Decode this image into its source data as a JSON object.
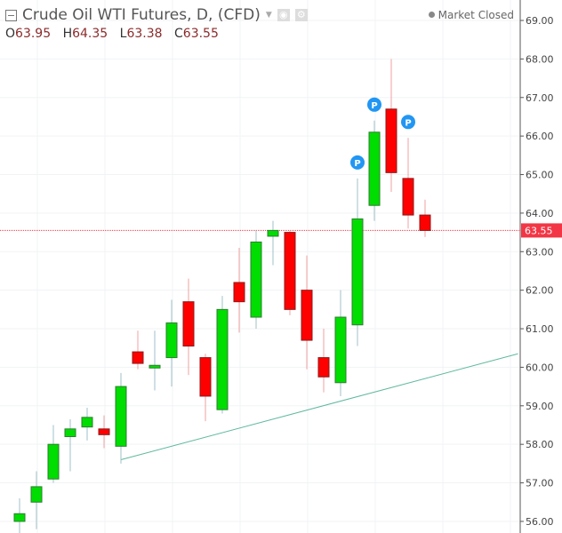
{
  "header": {
    "title": "Crude Oil WTI Futures, D, (CFD)",
    "status": "Market Closed",
    "ohlc": {
      "o_label": "O",
      "o": "63.95",
      "h_label": "H",
      "h": "64.35",
      "l_label": "L",
      "l": "63.38",
      "c_label": "C",
      "c": "63.55"
    }
  },
  "colors": {
    "up": "#00dd00",
    "down": "#ff0000",
    "wick_up": "#9fc0c8",
    "wick_down": "#f0a0a0",
    "trend": "#5fb8a0",
    "marker": "#2196f3",
    "last": "#f23645"
  },
  "chart_data": {
    "type": "candlestick",
    "title": "Crude Oil WTI Futures, D, (CFD)",
    "ylim": [
      55.85,
      69.45
    ],
    "yticks": [
      "69.00",
      "68.00",
      "67.00",
      "66.00",
      "65.00",
      "64.00",
      "63.00",
      "62.00",
      "61.00",
      "60.00",
      "59.00",
      "58.00",
      "57.00",
      "56.00"
    ],
    "last_price": "63.55",
    "marker_label": "P",
    "markers_at": [
      20,
      21,
      23
    ],
    "trendline": {
      "from_index": 6,
      "from": 57.6,
      "to_index": 29.5,
      "to": 60.35
    },
    "candles": [
      [
        56.0,
        56.6,
        55.7,
        56.2
      ],
      [
        56.5,
        57.3,
        55.8,
        56.9
      ],
      [
        57.1,
        58.5,
        57.0,
        58.0
      ],
      [
        58.2,
        58.65,
        57.3,
        58.4
      ],
      [
        58.45,
        58.95,
        58.1,
        58.7
      ],
      [
        58.4,
        58.75,
        57.9,
        58.25
      ],
      [
        57.95,
        59.85,
        57.5,
        59.5
      ],
      [
        60.4,
        60.95,
        59.95,
        60.1
      ],
      [
        60.0,
        60.95,
        59.4,
        60.05
      ],
      [
        60.25,
        61.75,
        59.5,
        61.15
      ],
      [
        61.7,
        62.3,
        59.8,
        60.55
      ],
      [
        60.25,
        60.35,
        58.6,
        59.25
      ],
      [
        58.9,
        61.85,
        58.8,
        61.5
      ],
      [
        62.2,
        63.1,
        60.9,
        61.7
      ],
      [
        61.3,
        63.55,
        61.0,
        63.25
      ],
      [
        63.4,
        63.8,
        62.65,
        63.55
      ],
      [
        63.5,
        63.55,
        61.35,
        61.5
      ],
      [
        62.0,
        62.9,
        59.95,
        60.7
      ],
      [
        60.25,
        61.0,
        59.35,
        59.75
      ],
      [
        59.6,
        62.0,
        59.25,
        61.3
      ],
      [
        61.1,
        64.9,
        60.55,
        63.85
      ],
      [
        64.2,
        66.4,
        63.8,
        66.1
      ],
      [
        66.7,
        68.0,
        64.55,
        65.05
      ],
      [
        64.9,
        65.95,
        63.6,
        63.95
      ],
      [
        63.95,
        64.35,
        63.38,
        63.55
      ]
    ]
  }
}
